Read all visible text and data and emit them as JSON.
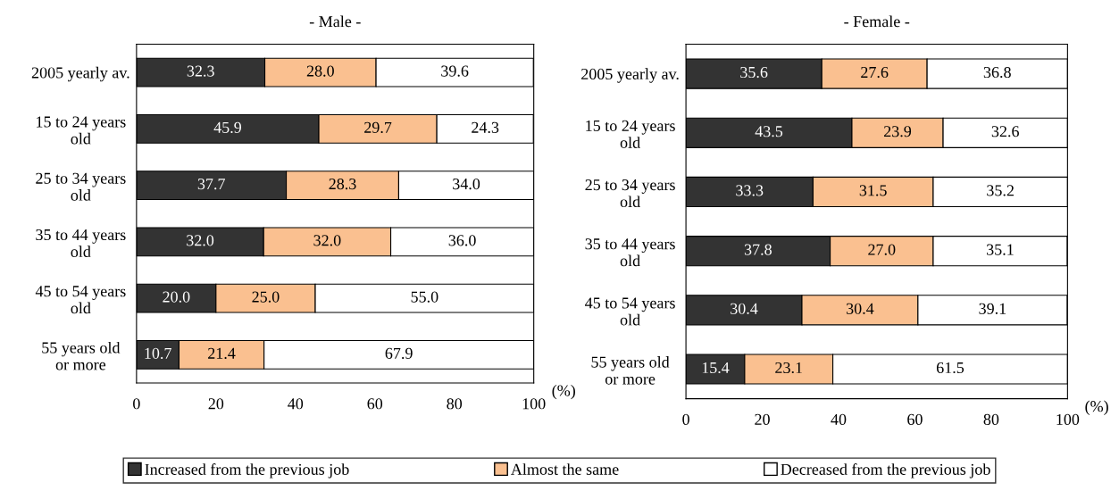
{
  "chart_data": [
    {
      "type": "bar",
      "orientation": "horizontal",
      "stacked": true,
      "title": "- Male -",
      "xlabel": "(%)",
      "categories": [
        "2005 yearly av.",
        "15 to 24 years\nold",
        "25 to 34 years\nold",
        "35 to 44 years\nold",
        "45 to 54 years\nold",
        "55 years old\nor more"
      ],
      "series": [
        {
          "name": "Increased from the previous job",
          "color": "#333333",
          "values": [
            32.3,
            45.9,
            37.7,
            32.0,
            20.0,
            10.7
          ],
          "value_labels": [
            "32.3",
            "45.9",
            "37.7",
            "32.0",
            "20.0",
            "10.7"
          ]
        },
        {
          "name": "Almost the same",
          "color": "#fac090",
          "values": [
            28.0,
            29.7,
            28.3,
            32.0,
            25.0,
            21.4
          ],
          "value_labels": [
            "28.0",
            "29.7",
            "28.3",
            "32.0",
            "25.0",
            "21.4"
          ]
        },
        {
          "name": "Decreased from the previous job",
          "color": "#ffffff",
          "values": [
            39.6,
            24.3,
            34.0,
            36.0,
            55.0,
            67.9
          ],
          "value_labels": [
            "39.6",
            "24.3",
            "34.0",
            "36.0",
            "55.0",
            "67.9"
          ]
        }
      ],
      "xlim": [
        0,
        100
      ],
      "xticks": [
        0,
        20,
        40,
        60,
        80,
        100
      ],
      "legend": "bottom",
      "grid": false
    },
    {
      "type": "bar",
      "orientation": "horizontal",
      "stacked": true,
      "title": "- Female -",
      "xlabel": "(%)",
      "categories": [
        "2005 yearly av.",
        "15 to 24 years\nold",
        "25 to 34 years\nold",
        "35 to 44 years\nold",
        "45 to 54 years\nold",
        "55 years old\nor more"
      ],
      "series": [
        {
          "color": "#333333",
          "values": [
            35.6,
            43.5,
            33.3,
            37.8,
            30.4,
            15.4
          ],
          "value_labels": [
            "35.6",
            "43.5",
            "33.3",
            "37.8",
            "30.4",
            "15.4"
          ]
        },
        {
          "color": "#fac090",
          "values": [
            27.6,
            23.9,
            31.5,
            27.0,
            30.4,
            23.1
          ],
          "value_labels": [
            "27.6",
            "23.9",
            "31.5",
            "27.0",
            "30.4",
            "23.1"
          ]
        },
        {
          "color": "#ffffff",
          "values": [
            36.8,
            32.6,
            35.2,
            35.1,
            39.1,
            61.5
          ],
          "value_labels": [
            "36.8",
            "32.6",
            "35.2",
            "35.1",
            "39.1",
            "61.5"
          ]
        }
      ],
      "xlim": [
        0,
        100
      ],
      "xticks": [
        0,
        20,
        40,
        60,
        80,
        100
      ],
      "grid": false
    }
  ]
}
